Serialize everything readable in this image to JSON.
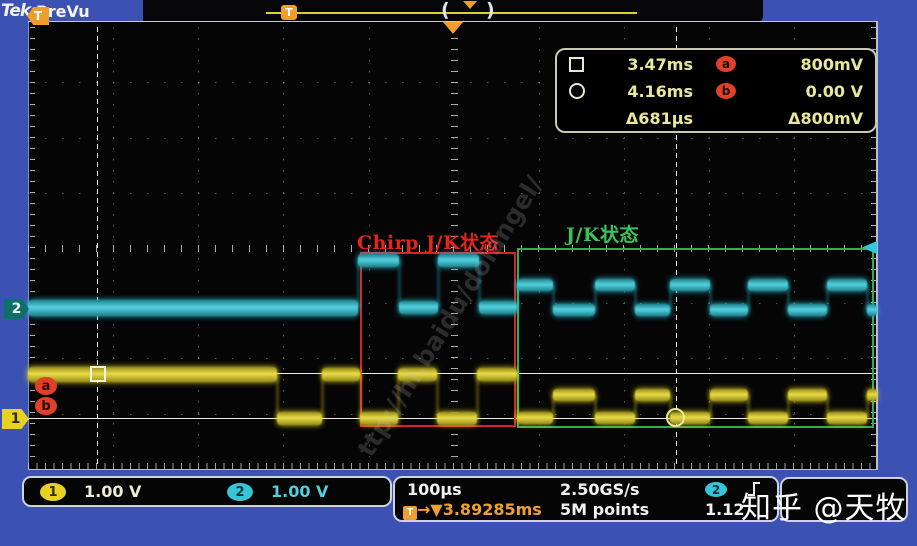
{
  "header": {
    "logo": "Tek",
    "mode": "PreVu",
    "trigger_flag": "T"
  },
  "record_bar": {
    "trigger_marker": "T",
    "bracket_left": "(",
    "bracket_right": ")"
  },
  "cursor_readout": {
    "a_time": "3.47ms",
    "b_time": "4.16ms",
    "delta_time": "Δ681µs",
    "a_badge": "a",
    "b_badge": "b",
    "a_volt": "800mV",
    "b_volt": "0.00 V",
    "delta_volt": "Δ800mV"
  },
  "annotations": {
    "chirp": "Chirp J/K状态",
    "jk": "J/K状态"
  },
  "left_markers": {
    "ch2": "2",
    "cursor_a": "a",
    "cursor_b": "b",
    "ch1": "1"
  },
  "bottom": {
    "ch1_badge": "1",
    "ch1_scale": "1.00 V",
    "ch2_badge": "2",
    "ch2_scale": "1.00 V",
    "timebase": "100µs",
    "sample_rate": "2.50GS/s",
    "record_length": "5M points",
    "trigger_flag": "T",
    "trigger_arrows": "→▼",
    "trigger_position": "3.89285ms",
    "trigger_source_badge": "2",
    "trigger_level": "1.12"
  },
  "watermarks": {
    "zhihu": "知乎 @天牧",
    "faint": "ttp://hi.baidu/dolangel/"
  },
  "colors": {
    "background": "#3c52b2",
    "ch1": "#e6d622",
    "ch2": "#2fc8da",
    "accent_orange": "#ef9d2b",
    "cursor_red": "#e0402a",
    "region_red": "#d42420",
    "region_green": "#2fae4e",
    "readout_yellow": "#e8e89c"
  },
  "waveforms": {
    "ch2": {
      "color": "#2fc8da",
      "segments": [
        [
          28,
          358,
          308,
          16
        ],
        [
          358,
          399,
          260,
          13
        ],
        [
          399,
          438,
          307,
          13
        ],
        [
          438,
          479,
          260,
          13
        ],
        [
          479,
          517,
          307,
          13
        ],
        [
          517,
          553,
          285,
          12
        ],
        [
          553,
          595,
          310,
          12
        ],
        [
          595,
          635,
          285,
          12
        ],
        [
          635,
          670,
          310,
          12
        ],
        [
          670,
          710,
          285,
          12
        ],
        [
          710,
          748,
          310,
          12
        ],
        [
          748,
          788,
          285,
          12
        ],
        [
          788,
          827,
          310,
          12
        ],
        [
          827,
          867,
          285,
          12
        ],
        [
          867,
          877,
          310,
          12
        ]
      ]
    },
    "ch1": {
      "color": "#e6d622",
      "segments": [
        [
          28,
          277,
          374,
          15
        ],
        [
          277,
          322,
          418,
          13
        ],
        [
          322,
          360,
          374,
          13
        ],
        [
          360,
          398,
          418,
          13
        ],
        [
          398,
          437,
          374,
          13
        ],
        [
          437,
          477,
          418,
          13
        ],
        [
          477,
          517,
          374,
          13
        ],
        [
          517,
          553,
          418,
          12
        ],
        [
          553,
          595,
          395,
          12
        ],
        [
          595,
          635,
          418,
          12
        ],
        [
          635,
          670,
          395,
          12
        ],
        [
          670,
          710,
          418,
          12
        ],
        [
          710,
          748,
          395,
          12
        ],
        [
          748,
          788,
          418,
          12
        ],
        [
          788,
          827,
          395,
          12
        ],
        [
          827,
          867,
          418,
          12
        ],
        [
          867,
          877,
          395,
          12
        ]
      ]
    }
  }
}
